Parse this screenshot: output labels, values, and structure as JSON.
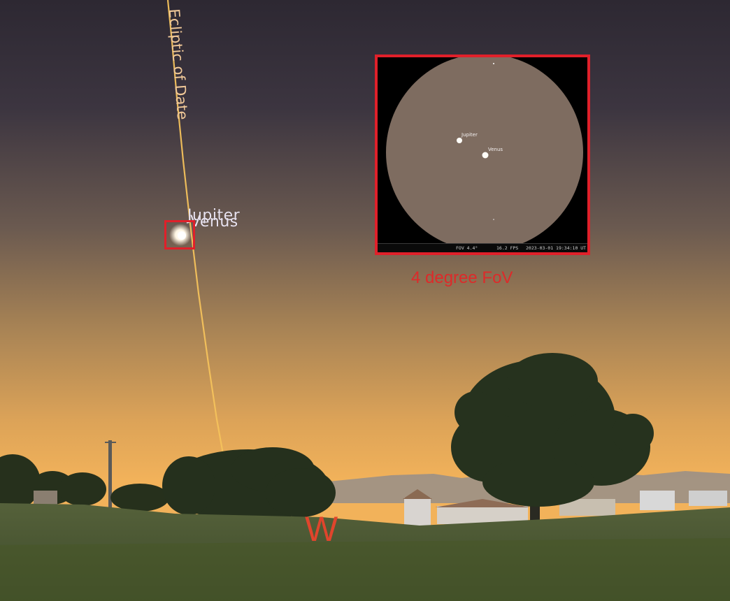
{
  "sky": {
    "ecliptic_label": "Ecliptic of Date",
    "planet_labels": {
      "jupiter": "Jupiter",
      "venus": "Venus"
    },
    "compass_direction": "W",
    "colors": {
      "sky_top": "#2d2832",
      "sky_horizon": "#f2b25a",
      "ecliptic_line": "#f4c25c",
      "marker": "#e0202a",
      "compass": "#e0452c",
      "ground": "#4a5a30"
    }
  },
  "inset": {
    "caption": "4 degree FoV",
    "labels": {
      "jupiter": "Jupiter",
      "venus": "Venus"
    },
    "status": {
      "fov": "FOV 4.4°",
      "fps": "16.2 FPS",
      "datetime": "2023-03-01 19:34:10 UT"
    }
  }
}
